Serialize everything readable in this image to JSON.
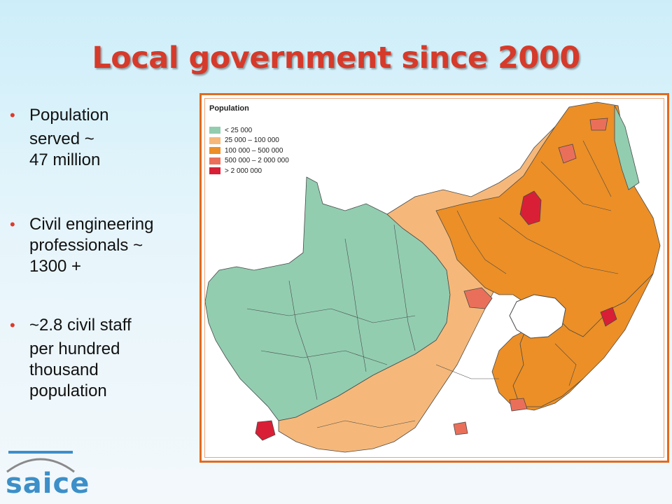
{
  "slide": {
    "title": "Local government since 2000",
    "bullets": [
      {
        "lines": [
          "Population",
          "served ~",
          "47 million"
        ]
      },
      {
        "lines": [
          "Civil engineering",
          "professionals ~",
          "1300 +"
        ]
      },
      {
        "lines": [
          "~2.8 civil staff",
          "per hundred",
          "thousand",
          "population"
        ]
      }
    ]
  },
  "map": {
    "legend_title": "Population",
    "legend": [
      {
        "label": "< 25 000",
        "color": "#92cdb0"
      },
      {
        "label": "25 000 – 100 000",
        "color": "#f5b87a"
      },
      {
        "label": "100 000 – 500 000",
        "color": "#ec8f26"
      },
      {
        "label": "500 000 – 2 000 000",
        "color": "#ea6f5a"
      },
      {
        "label": "> 2 000 000",
        "color": "#d91f36"
      }
    ]
  },
  "logo": {
    "text": "saice"
  }
}
